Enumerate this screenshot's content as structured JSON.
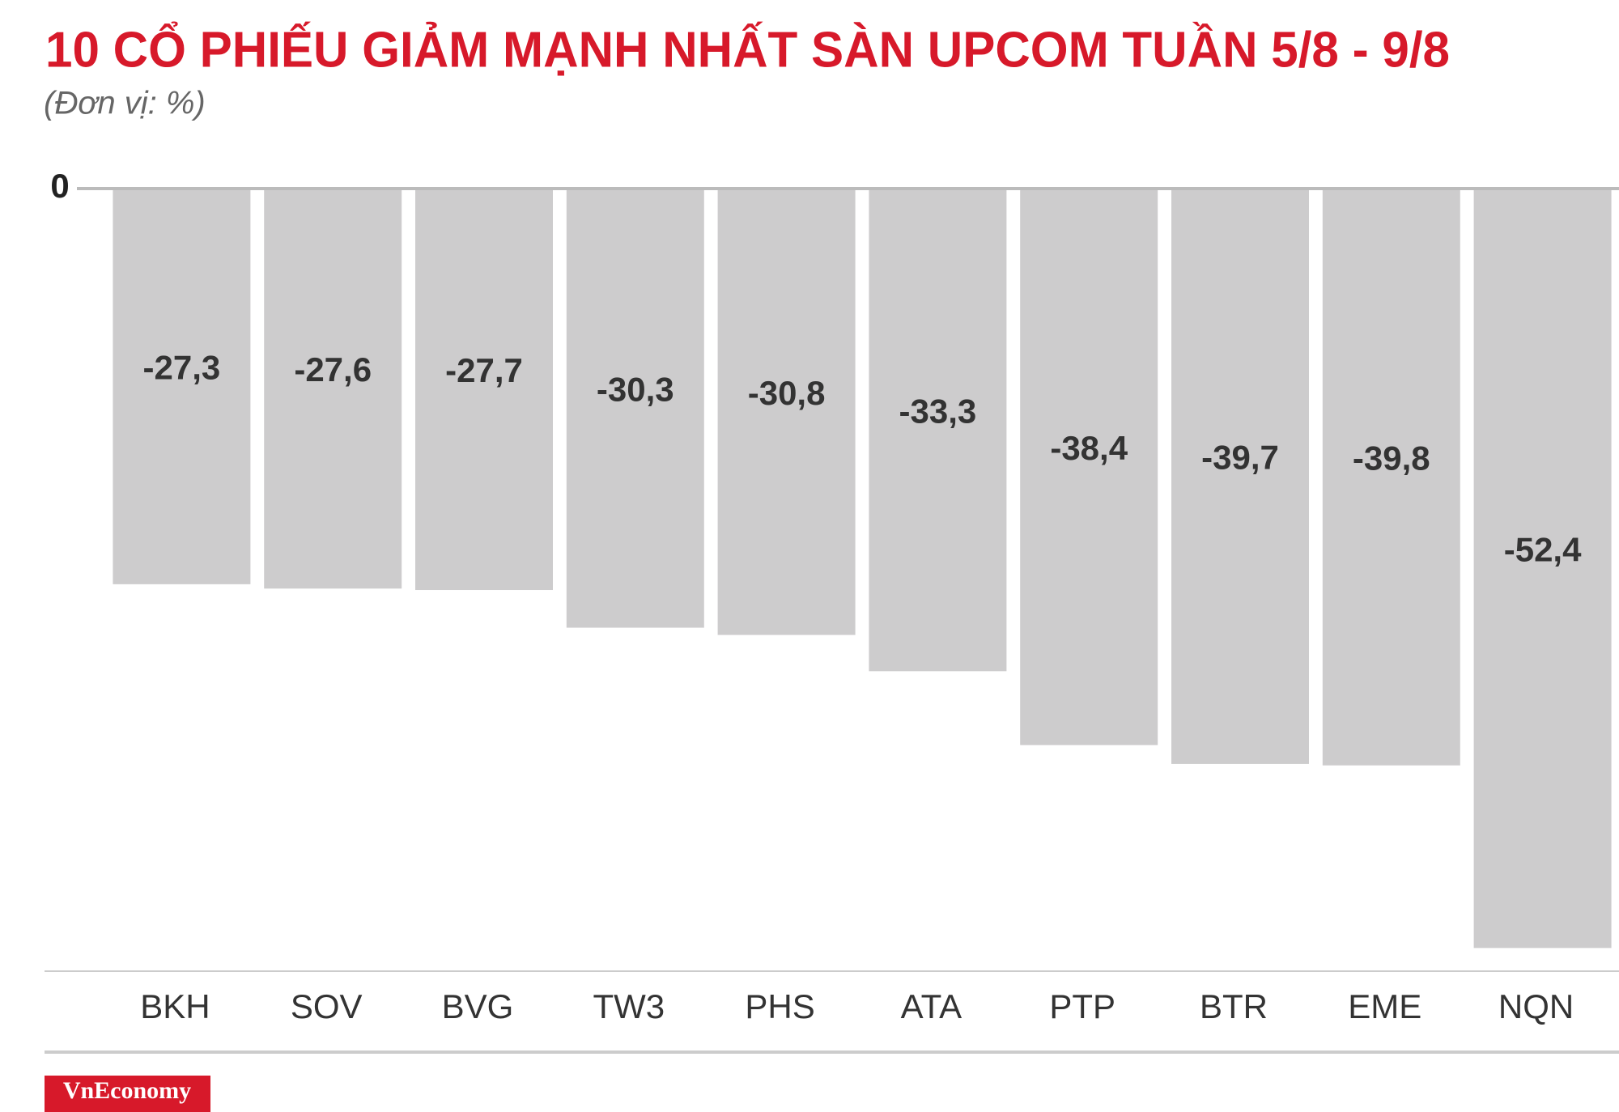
{
  "chart_data": {
    "type": "bar",
    "title": "10 CỔ PHIẾU GIẢM MẠNH NHẤT SÀN UPCOM TUẦN 5/8 - 9/8",
    "subtitle": "(Đơn vị: %)",
    "categories": [
      "BKH",
      "SOV",
      "BVG",
      "TW3",
      "PHS",
      "ATA",
      "PTP",
      "BTR",
      "EME",
      "NQN"
    ],
    "values": [
      -27.3,
      -27.6,
      -27.7,
      -30.3,
      -30.8,
      -33.3,
      -38.4,
      -39.7,
      -39.8,
      -52.4
    ],
    "value_labels": [
      "-27,3",
      "-27,6",
      "-27,7",
      "-30,3",
      "-30,8",
      "-33,3",
      "-38,4",
      "-39,7",
      "-39,8",
      "-52,4"
    ],
    "color": "#cdcccd",
    "ylim": [
      -54,
      0
    ],
    "yticks": [
      0
    ],
    "logo": "VnEconomy"
  }
}
